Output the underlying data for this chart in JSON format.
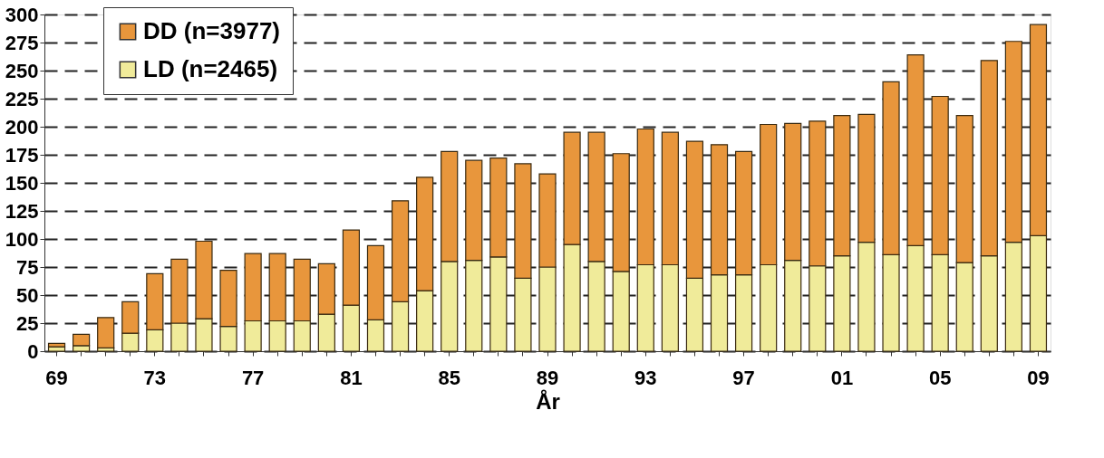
{
  "chart_data": {
    "type": "bar",
    "stacked": true,
    "xlabel": "År",
    "categories": [
      "69",
      null,
      null,
      null,
      "73",
      null,
      null,
      null,
      "77",
      null,
      null,
      null,
      "81",
      null,
      null,
      null,
      "85",
      null,
      null,
      null,
      "89",
      null,
      null,
      null,
      "93",
      null,
      null,
      null,
      "97",
      null,
      null,
      null,
      "01",
      null,
      null,
      null,
      "05",
      null,
      null,
      null,
      "09"
    ],
    "series": [
      {
        "name": "LD (n=2465)",
        "color": "#f0eb9a",
        "values": [
          4,
          5,
          3,
          16,
          19,
          25,
          29,
          22,
          27,
          27,
          27,
          33,
          41,
          28,
          44,
          54,
          80,
          81,
          84,
          65,
          75,
          95,
          80,
          71,
          77,
          77,
          65,
          68,
          68,
          77,
          81,
          76,
          85,
          97,
          86,
          94,
          86,
          79,
          85,
          97,
          103
        ]
      },
      {
        "name": "DD (n=3977)",
        "color": "#e8963c",
        "values": [
          3,
          10,
          27,
          28,
          50,
          57,
          69,
          50,
          60,
          60,
          55,
          45,
          67,
          66,
          90,
          101,
          98,
          89,
          88,
          102,
          83,
          100,
          115,
          105,
          121,
          118,
          122,
          116,
          110,
          125,
          122,
          129,
          125,
          114,
          154,
          170,
          141,
          131,
          174,
          179,
          188
        ]
      }
    ],
    "ylim": [
      0,
      300
    ],
    "yticks": [
      0,
      25,
      50,
      75,
      100,
      125,
      150,
      175,
      200,
      225,
      250,
      275,
      300
    ],
    "grid": "y",
    "legend": "top left"
  }
}
